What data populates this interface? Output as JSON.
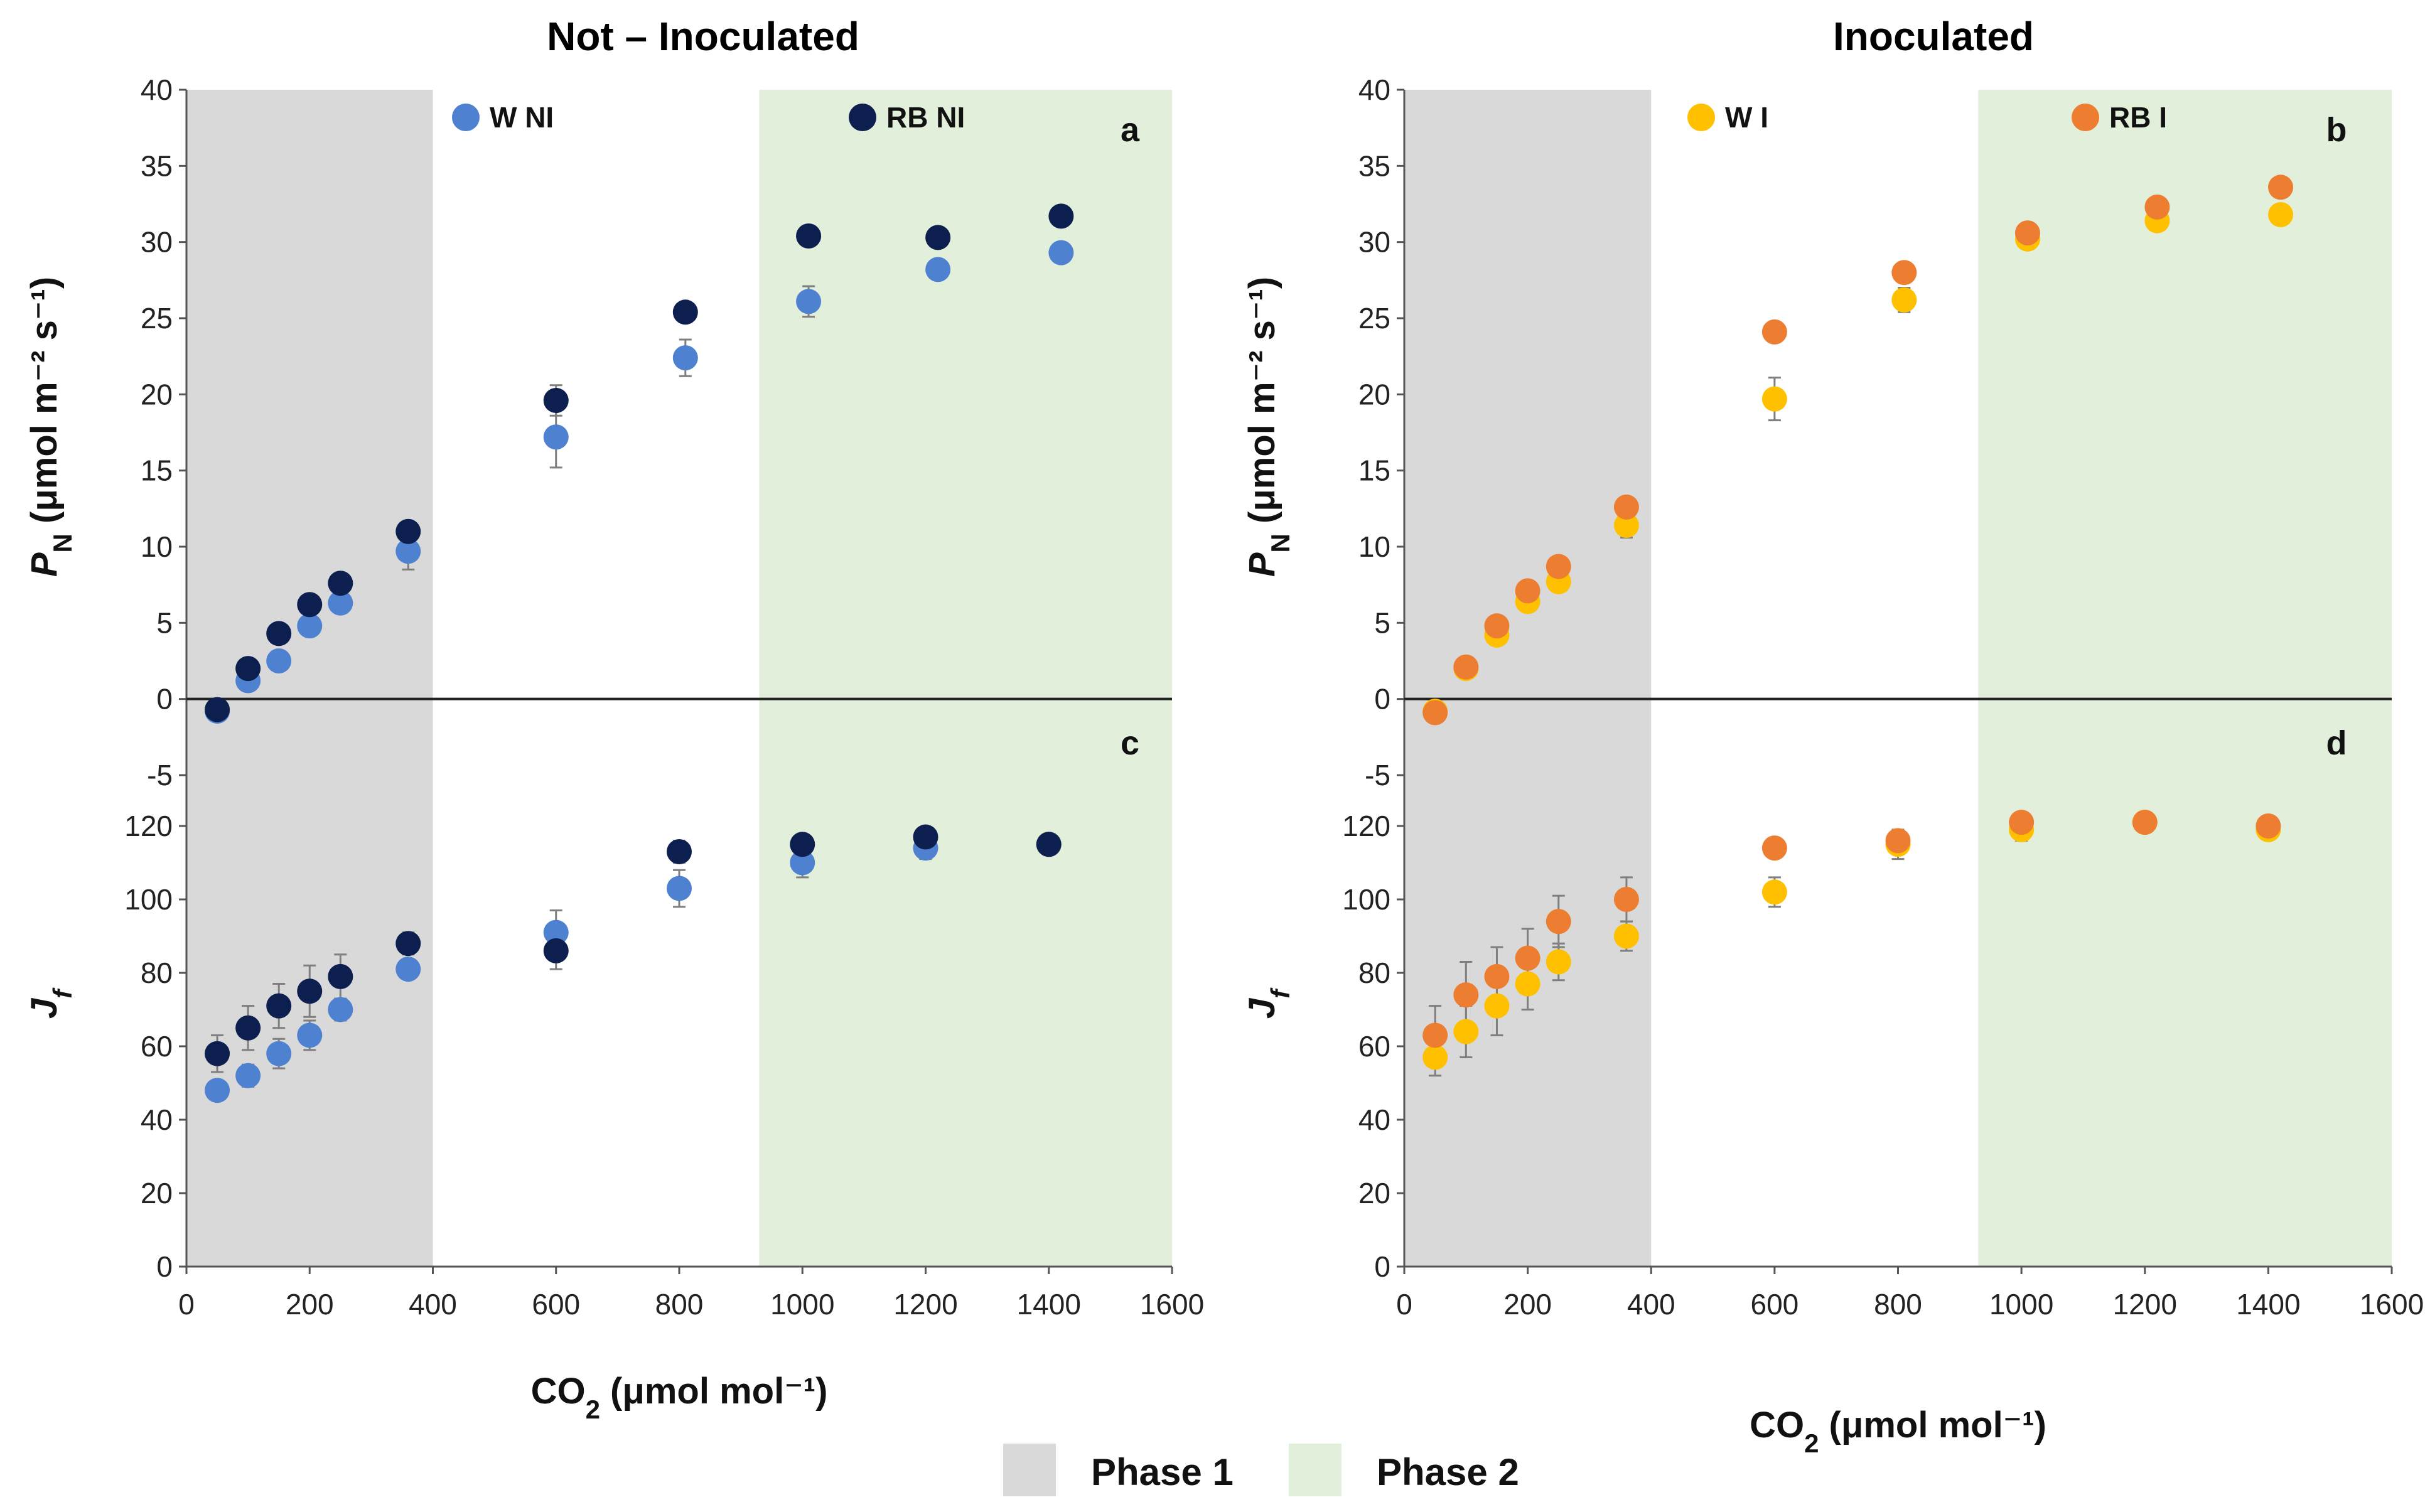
{
  "figure": {
    "legend": {
      "phase1": {
        "label": "Phase 1",
        "color": "#d9d9d9"
      },
      "phase2": {
        "label": "Phase 2",
        "color": "#e2efda"
      }
    }
  },
  "chart_data": [
    {
      "id": "a",
      "type": "scatter",
      "column_title": "Not – Inoculated",
      "panel_letter": "a",
      "ylabel_main": "P",
      "ylabel_sub": "N",
      "ylabel_rest": " (μmol m⁻² s⁻¹)",
      "xlim": [
        0,
        1600
      ],
      "ylim": [
        -5,
        40
      ],
      "yticks": [
        "-5",
        "0",
        "5",
        "10",
        "15",
        "20",
        "25",
        "30",
        "35",
        "40"
      ],
      "phase1_range": [
        0,
        400
      ],
      "phase2_range": [
        930,
        1600
      ],
      "series": [
        {
          "name": "W NI",
          "color": "#4f81d1",
          "x": [
            50,
            100,
            150,
            200,
            250,
            360,
            600,
            810,
            1010,
            1220,
            1420
          ],
          "y": [
            -0.8,
            1.2,
            2.5,
            4.8,
            6.3,
            9.7,
            17.2,
            22.4,
            26.1,
            28.2,
            29.3
          ],
          "err": [
            0.3,
            0.3,
            0.3,
            0.4,
            0.4,
            1.2,
            2.0,
            1.2,
            1.0,
            0.5,
            0.4
          ]
        },
        {
          "name": "RB NI",
          "color": "#0d1f4f",
          "x": [
            50,
            100,
            150,
            200,
            250,
            360,
            600,
            810,
            1010,
            1220,
            1420
          ],
          "y": [
            -0.7,
            2.0,
            4.3,
            6.2,
            7.6,
            11.0,
            19.6,
            25.4,
            30.4,
            30.3,
            31.7
          ],
          "err": [
            0.3,
            0.3,
            0.3,
            0.4,
            0.4,
            0.5,
            1.0,
            0.5,
            0.4,
            0.4,
            0.4
          ]
        }
      ]
    },
    {
      "id": "b",
      "type": "scatter",
      "column_title": "Inoculated",
      "panel_letter": "b",
      "ylabel_main": "P",
      "ylabel_sub": "N",
      "ylabel_rest": " (μmol m⁻² s⁻¹)",
      "xlim": [
        0,
        1600
      ],
      "ylim": [
        -5,
        40
      ],
      "yticks": [
        "-5",
        "0",
        "5",
        "10",
        "15",
        "20",
        "25",
        "30",
        "35",
        "40"
      ],
      "phase1_range": [
        0,
        400
      ],
      "phase2_range": [
        930,
        1600
      ],
      "series": [
        {
          "name": "W I",
          "color": "#ffc000",
          "x": [
            50,
            100,
            150,
            200,
            250,
            360,
            600,
            810,
            1010,
            1220,
            1420
          ],
          "y": [
            -0.8,
            2.0,
            4.2,
            6.4,
            7.7,
            11.4,
            19.7,
            26.2,
            30.2,
            31.4,
            31.8
          ],
          "err": [
            0.3,
            0.3,
            0.3,
            0.4,
            0.4,
            0.8,
            1.4,
            0.8,
            0.4,
            0.5,
            0.5
          ]
        },
        {
          "name": "RB I",
          "color": "#ed7d31",
          "x": [
            50,
            100,
            150,
            200,
            250,
            360,
            600,
            810,
            1010,
            1220,
            1420
          ],
          "y": [
            -0.9,
            2.1,
            4.8,
            7.1,
            8.7,
            12.6,
            24.1,
            28.0,
            30.6,
            32.3,
            33.6
          ],
          "err": [
            0.3,
            0.3,
            0.3,
            0.4,
            0.4,
            0.5,
            0.5,
            0.5,
            0.4,
            0.4,
            0.6
          ]
        }
      ]
    },
    {
      "id": "c",
      "type": "scatter",
      "panel_letter": "c",
      "ylabel_main": "J",
      "ylabel_sub": "f",
      "xlabel_main": "CO",
      "xlabel_sub": "2",
      "xlabel_rest": " (μmol mol⁻¹)",
      "xlim": [
        0,
        1600
      ],
      "xticks": [
        "0",
        "200",
        "400",
        "600",
        "800",
        "1000",
        "1200",
        "1400",
        "1600"
      ],
      "ylim": [
        0,
        120
      ],
      "yticks": [
        "0",
        "20",
        "40",
        "60",
        "80",
        "100",
        "120"
      ],
      "phase1_range": [
        0,
        400
      ],
      "phase2_range": [
        930,
        1600
      ],
      "series": [
        {
          "name": "W NI",
          "color": "#4f81d1",
          "x": [
            50,
            100,
            150,
            200,
            250,
            360,
            600,
            800,
            1000,
            1200,
            1400
          ],
          "y": [
            48,
            52,
            58,
            63,
            70,
            81,
            91,
            103,
            110,
            114,
            115
          ],
          "err": [
            2,
            3,
            4,
            4,
            3,
            2,
            6,
            5,
            4,
            3,
            2
          ]
        },
        {
          "name": "RB NI",
          "color": "#0d1f4f",
          "x": [
            50,
            100,
            150,
            200,
            250,
            360,
            600,
            800,
            1000,
            1200,
            1400
          ],
          "y": [
            58,
            65,
            71,
            75,
            79,
            88,
            86,
            113,
            115,
            117,
            115
          ],
          "err": [
            5,
            6,
            6,
            7,
            6,
            3,
            5,
            3,
            2,
            2,
            2
          ]
        }
      ]
    },
    {
      "id": "d",
      "type": "scatter",
      "panel_letter": "d",
      "ylabel_main": "J",
      "ylabel_sub": "f",
      "xlabel_main": "CO",
      "xlabel_sub": "2",
      "xlabel_rest": " (μmol mol⁻¹)",
      "xlim": [
        0,
        1600
      ],
      "xticks": [
        "0",
        "200",
        "400",
        "600",
        "800",
        "1000",
        "1200",
        "1400",
        "1600"
      ],
      "ylim": [
        0,
        120
      ],
      "yticks": [
        "0",
        "20",
        "40",
        "60",
        "80",
        "100",
        "120"
      ],
      "phase1_range": [
        0,
        400
      ],
      "phase2_range": [
        930,
        1600
      ],
      "series": [
        {
          "name": "W I",
          "color": "#ffc000",
          "x": [
            50,
            100,
            150,
            200,
            250,
            360,
            600,
            800,
            1000,
            1200,
            1400
          ],
          "y": [
            57,
            64,
            71,
            77,
            83,
            90,
            102,
            115,
            119,
            121,
            119
          ],
          "err": [
            5,
            7,
            8,
            7,
            5,
            4,
            4,
            4,
            3,
            2,
            2
          ]
        },
        {
          "name": "RB I",
          "color": "#ed7d31",
          "x": [
            50,
            100,
            150,
            200,
            250,
            360,
            600,
            800,
            1000,
            1200,
            1400
          ],
          "y": [
            63,
            74,
            79,
            84,
            94,
            100,
            114,
            116,
            121,
            121,
            120
          ],
          "err": [
            8,
            9,
            8,
            8,
            7,
            6,
            2,
            2,
            2,
            2,
            2
          ]
        }
      ]
    }
  ]
}
